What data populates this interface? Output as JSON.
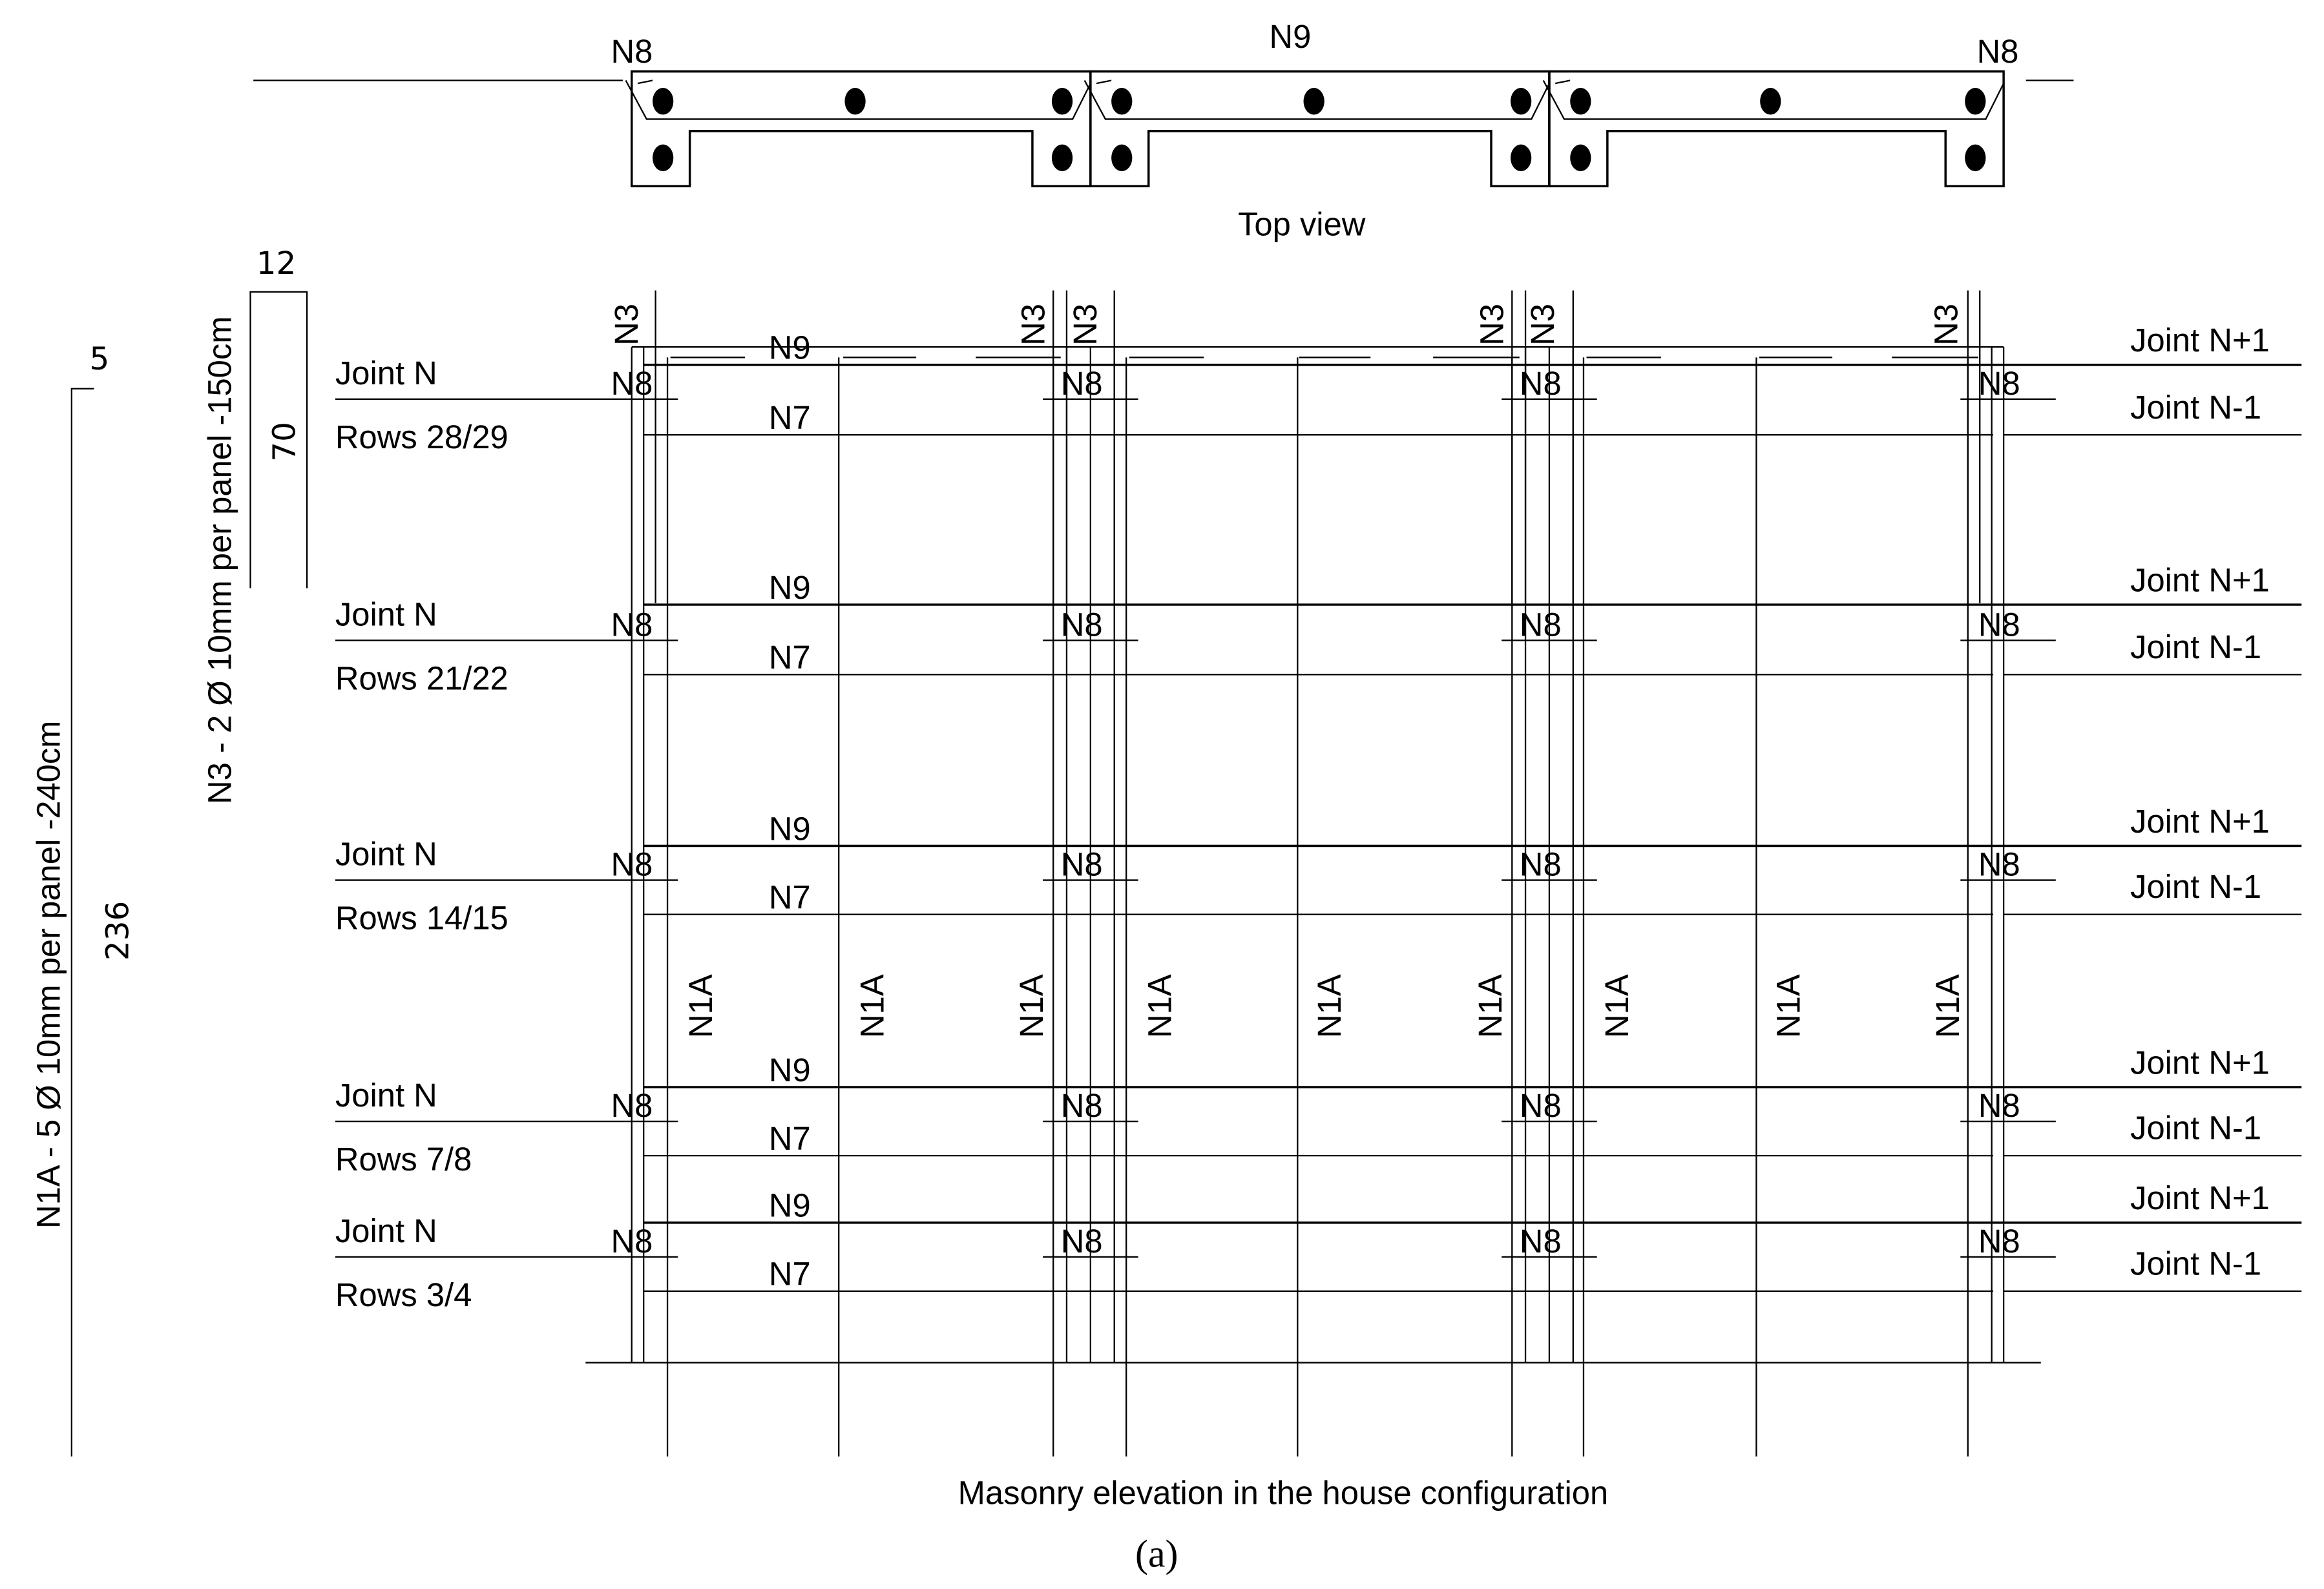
{
  "top_view": {
    "label_left": "N8",
    "label_center": "N9",
    "label_right": "N8",
    "caption": "Top view"
  },
  "dims": {
    "n3_spec": "N3 - 2 Ø 10mm per panel -150cm",
    "n3_width": "12",
    "n3_length": "70",
    "n1a_spec": "N1A - 5 Ø 10mm per panel -240cm",
    "n1a_hook": "5",
    "n1a_length": "236"
  },
  "rows": [
    {
      "joint": "Joint N",
      "rows": "Rows 28/29",
      "right_top": "Joint N+1",
      "right_bottom": "Joint N-1"
    },
    {
      "joint": "Joint N",
      "rows": "Rows 21/22",
      "right_top": "Joint N+1",
      "right_bottom": "Joint N-1"
    },
    {
      "joint": "Joint N",
      "rows": "Rows 14/15",
      "right_top": "Joint N+1",
      "right_bottom": "Joint N-1"
    },
    {
      "joint": "Joint N",
      "rows": "Rows 7/8",
      "right_top": "Joint N+1",
      "right_bottom": "Joint N-1"
    },
    {
      "joint": "Joint N",
      "rows": "Rows 3/4",
      "right_top": "Joint N+1",
      "right_bottom": "Joint N-1"
    }
  ],
  "bar_labels": {
    "n9": "N9",
    "n7": "N7",
    "n8": "N8",
    "n3": "N3",
    "n1a": "N1A"
  },
  "elevation_caption": "Masonry elevation in the house configuration",
  "figure_label": "(a)"
}
